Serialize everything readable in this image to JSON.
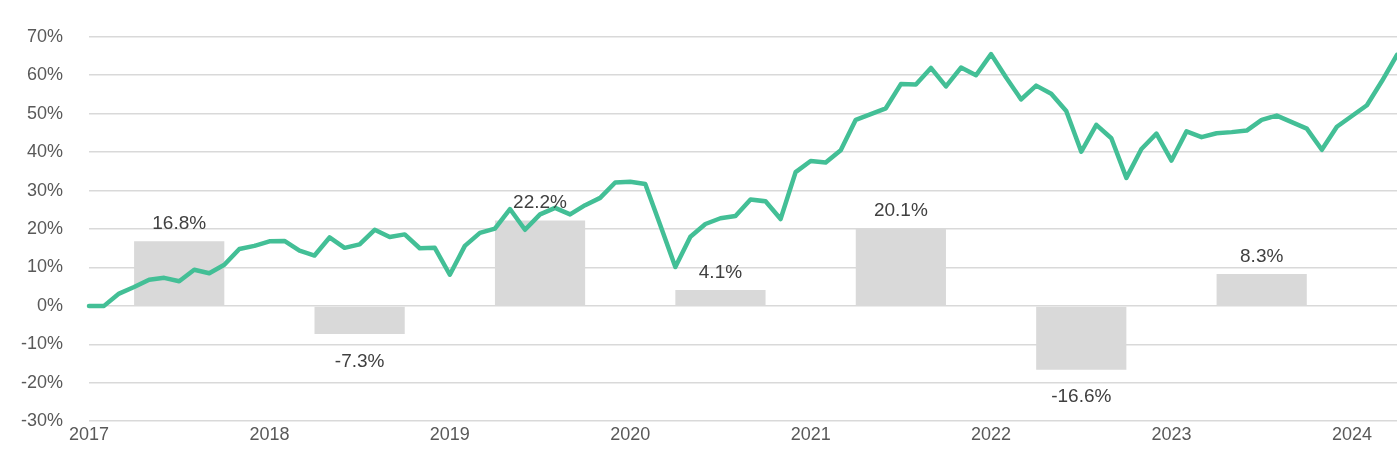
{
  "chart_data": {
    "type": "bar",
    "xlim": [
      "2017-01",
      "2024-04"
    ],
    "xticks": [
      "2017",
      "2018",
      "2019",
      "2020",
      "2021",
      "2022",
      "2023",
      "2024"
    ],
    "ylim": [
      -30,
      70
    ],
    "yticks": [
      {
        "value": -30,
        "label": "-30%"
      },
      {
        "value": -20,
        "label": "-20%"
      },
      {
        "value": -10,
        "label": "-10%"
      },
      {
        "value": 0,
        "label": "0%"
      },
      {
        "value": 10,
        "label": "10%"
      },
      {
        "value": 20,
        "label": "20%"
      },
      {
        "value": 30,
        "label": "30%"
      },
      {
        "value": 40,
        "label": "40%"
      },
      {
        "value": 50,
        "label": "50%"
      },
      {
        "value": 60,
        "label": "60%"
      },
      {
        "value": 70,
        "label": "70%"
      }
    ],
    "grid": "y",
    "legend": false,
    "series": [
      {
        "color": "#d9d9d9",
        "x": [
          "2017-07",
          "2018-07",
          "2019-07",
          "2020-07",
          "2021-07",
          "2022-07",
          "2023-07"
        ],
        "values": [
          16.8,
          -7.3,
          22.2,
          4.1,
          20.1,
          -16.6,
          8.3
        ],
        "value_labels": [
          "16.8%",
          "-7.3%",
          "22.2%",
          "4.1%",
          "20.1%",
          "-16.6%",
          "8.3%"
        ]
      },
      {
        "type": "line",
        "color": "#43bf96",
        "marker": "none",
        "line_style": "solid",
        "x": [
          "2017-01",
          "2017-02",
          "2017-03",
          "2017-04",
          "2017-05",
          "2017-06",
          "2017-07",
          "2017-08",
          "2017-09",
          "2017-10",
          "2017-11",
          "2017-12",
          "2018-01",
          "2018-02",
          "2018-03",
          "2018-04",
          "2018-05",
          "2018-06",
          "2018-07",
          "2018-08",
          "2018-09",
          "2018-10",
          "2018-11",
          "2018-12",
          "2019-01",
          "2019-02",
          "2019-03",
          "2019-04",
          "2019-05",
          "2019-06",
          "2019-07",
          "2019-08",
          "2019-09",
          "2019-10",
          "2019-11",
          "2019-12",
          "2020-01",
          "2020-02",
          "2020-03",
          "2020-04",
          "2020-05",
          "2020-06",
          "2020-07",
          "2020-08",
          "2020-09",
          "2020-10",
          "2020-11",
          "2020-12",
          "2021-01",
          "2021-02",
          "2021-03",
          "2021-04",
          "2021-05",
          "2021-06",
          "2021-07",
          "2021-08",
          "2021-09",
          "2021-10",
          "2021-11",
          "2021-12",
          "2022-01",
          "2022-02",
          "2022-03",
          "2022-04",
          "2022-05",
          "2022-06",
          "2022-07",
          "2022-08",
          "2022-09",
          "2022-10",
          "2022-11",
          "2022-12",
          "2023-01",
          "2023-02",
          "2023-03",
          "2023-04",
          "2023-05",
          "2023-06",
          "2023-07",
          "2023-08",
          "2023-09",
          "2023-10",
          "2023-11",
          "2023-12",
          "2024-01",
          "2024-02",
          "2024-03",
          "2024-04"
        ],
        "values": [
          0,
          0,
          3.2,
          4.9,
          6.8,
          7.3,
          6.4,
          9.4,
          8.5,
          10.7,
          14.8,
          15.6,
          16.8,
          16.9,
          14.4,
          13.1,
          17.8,
          15.1,
          16.0,
          19.8,
          17.9,
          18.6,
          15.0,
          15.1,
          8.1,
          15.6,
          19.0,
          20.1,
          25.2,
          19.8,
          23.8,
          25.5,
          23.8,
          26.2,
          28.1,
          32.1,
          32.3,
          31.7,
          21.0,
          10.1,
          18.0,
          21.3,
          22.8,
          23.4,
          27.7,
          27.2,
          22.6,
          34.8,
          37.7,
          37.3,
          40.5,
          48.4,
          49.9,
          51.4,
          57.7,
          57.6,
          61.9,
          57.1,
          62.0,
          60.0,
          65.5,
          59.4,
          53.7,
          57.3,
          55.2,
          50.7,
          40.1,
          47.1,
          43.6,
          33.3,
          40.8,
          44.8,
          37.8,
          45.4,
          43.9,
          44.9,
          45.2,
          45.6,
          48.4,
          49.5,
          47.8,
          46.1,
          40.6,
          46.6,
          49.4,
          52.2,
          58.5,
          65.3
        ]
      }
    ]
  }
}
